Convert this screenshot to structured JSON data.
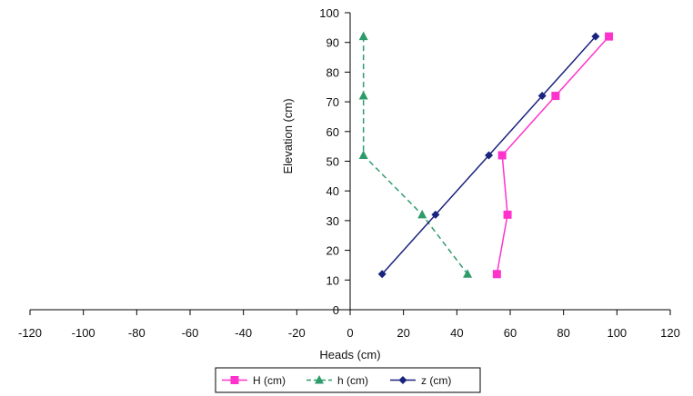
{
  "chart_data": {
    "type": "line",
    "xlabel": "Heads (cm)",
    "ylabel": "Elevation (cm)",
    "xlim": [
      -120,
      120
    ],
    "ylim": [
      0,
      100
    ],
    "x_ticks": [
      "-120",
      "-100",
      "-80",
      "-60",
      "-40",
      "-20",
      "0",
      "20",
      "40",
      "60",
      "80",
      "100",
      "120"
    ],
    "y_ticks": [
      "0",
      "10",
      "20",
      "30",
      "40",
      "50",
      "60",
      "70",
      "80",
      "90",
      "100"
    ],
    "grid": false,
    "legend_position": "bottom",
    "series": [
      {
        "name": "H (cm)",
        "color": "#ff33cc",
        "marker": "square",
        "line_style": "solid",
        "points": [
          [
            97,
            92
          ],
          [
            77,
            72
          ],
          [
            57,
            52
          ],
          [
            59,
            32
          ],
          [
            55,
            12
          ]
        ]
      },
      {
        "name": "h (cm)",
        "color": "#2e9c6a",
        "marker": "triangle",
        "line_style": "dashed",
        "points": [
          [
            5,
            92
          ],
          [
            5,
            72
          ],
          [
            5,
            52
          ],
          [
            27,
            32
          ],
          [
            44,
            12
          ]
        ]
      },
      {
        "name": "z (cm)",
        "color": "#1a237e",
        "marker": "diamond",
        "line_style": "solid",
        "points": [
          [
            92,
            92
          ],
          [
            72,
            72
          ],
          [
            52,
            52
          ],
          [
            32,
            32
          ],
          [
            12,
            12
          ]
        ]
      }
    ]
  }
}
